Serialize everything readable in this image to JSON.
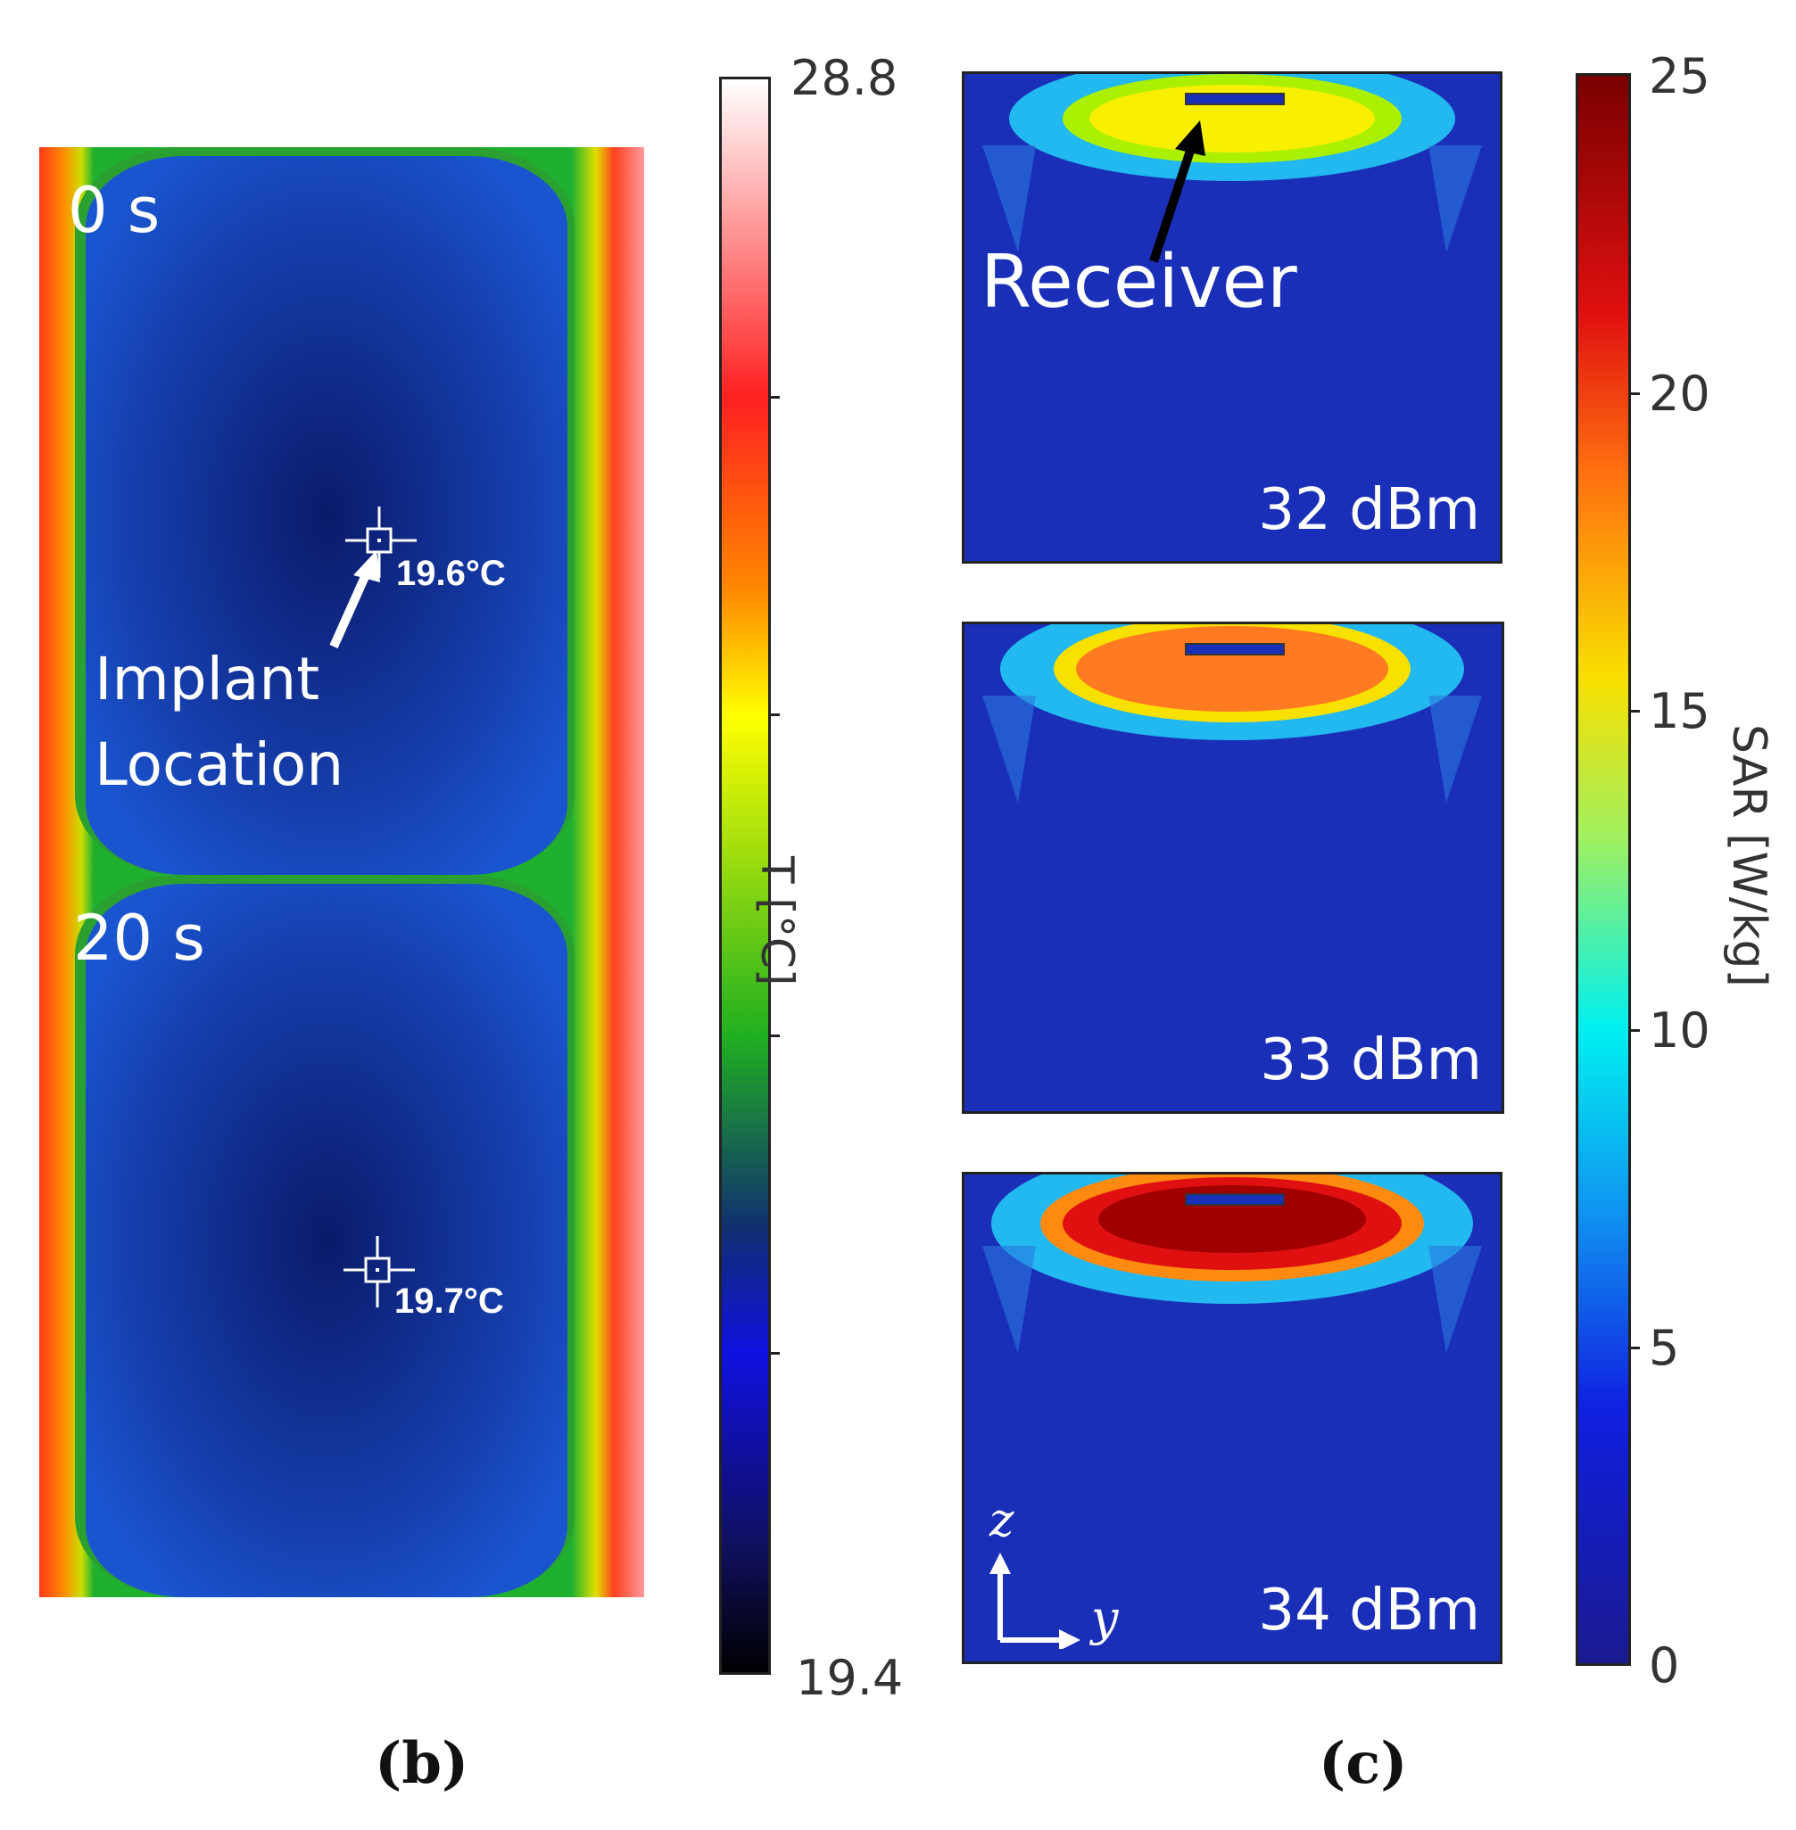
{
  "panel_b": {
    "label": "(b)",
    "frames": [
      {
        "time": "0 s",
        "temperature": "19.6°C",
        "annotation": [
          "Implant",
          "Location"
        ]
      },
      {
        "time": "20 s",
        "temperature": "19.7°C"
      }
    ],
    "colorbar": {
      "max": "28.8",
      "min": "19.4",
      "label": "T [°C]"
    }
  },
  "panel_c": {
    "label": "(c)",
    "maps": [
      {
        "power": "32 dBm",
        "annotation": "Receiver"
      },
      {
        "power": "33 dBm"
      },
      {
        "power": "34 dBm"
      }
    ],
    "axes": {
      "z": "z",
      "y": "y"
    },
    "colorbar": {
      "label": "SAR [W/kg]",
      "ticks": [
        "25",
        "20",
        "15",
        "10",
        "5",
        "0"
      ]
    }
  }
}
